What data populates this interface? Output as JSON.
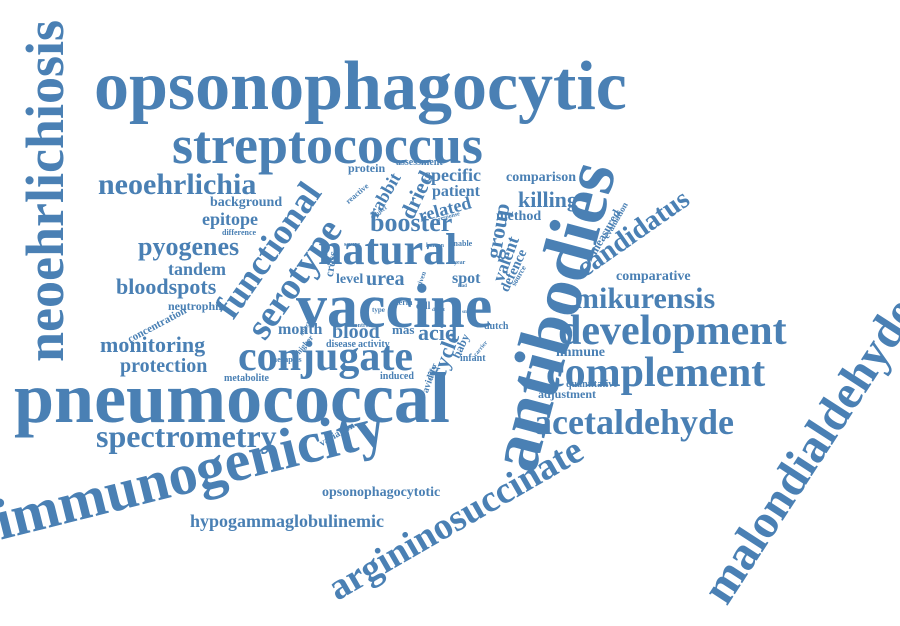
{
  "colors": {
    "word": "#4a80b4",
    "background": "#ffffff"
  },
  "words": [
    {
      "id": "opsonophagocytic",
      "text": "opsonophagocytic"
    },
    {
      "id": "neoehrlichiosis",
      "text": "neoehrlichiosis"
    },
    {
      "id": "streptococcus",
      "text": "streptococcus"
    },
    {
      "id": "neoehrlichia",
      "text": "neoehrlichia"
    },
    {
      "id": "functional",
      "text": "functional"
    },
    {
      "id": "serotype",
      "text": "serotype"
    },
    {
      "id": "natural",
      "text": "natural"
    },
    {
      "id": "booster",
      "text": "booster"
    },
    {
      "id": "vaccine",
      "text": "vaccine"
    },
    {
      "id": "antibodies",
      "text": "antibodies"
    },
    {
      "id": "candidatus",
      "text": "candidatus"
    },
    {
      "id": "mikurensis",
      "text": "mikurensis"
    },
    {
      "id": "development",
      "text": "development"
    },
    {
      "id": "complement",
      "text": "complement"
    },
    {
      "id": "pneumococcal",
      "text": "pneumococcal"
    },
    {
      "id": "conjugate",
      "text": "conjugate"
    },
    {
      "id": "spectrometry",
      "text": "spectrometry"
    },
    {
      "id": "immunogenicity",
      "text": "immunogenicity"
    },
    {
      "id": "acetaldehyde",
      "text": "acetaldehyde"
    },
    {
      "id": "argininosuccinate",
      "text": "argininosuccinate"
    },
    {
      "id": "malondialdehyde",
      "text": "malondialdehyde"
    },
    {
      "id": "hypogammaglobulinemic",
      "text": "hypogammaglobulinemic"
    },
    {
      "id": "opsonophagocytotic",
      "text": "opsonophagocytotic"
    },
    {
      "id": "monitoring",
      "text": "monitoring"
    },
    {
      "id": "protection",
      "text": "protection"
    },
    {
      "id": "bloodspots",
      "text": "bloodspots"
    },
    {
      "id": "pyogenes",
      "text": "pyogenes"
    },
    {
      "id": "tandem",
      "text": "tandem"
    },
    {
      "id": "epitope",
      "text": "epitope"
    },
    {
      "id": "background",
      "text": "background"
    },
    {
      "id": "neutrophil",
      "text": "neutrophil"
    },
    {
      "id": "concentration",
      "text": "concentration"
    },
    {
      "id": "metabolite",
      "text": "metabolite"
    },
    {
      "id": "difference",
      "text": "difference"
    },
    {
      "id": "month",
      "text": "month"
    },
    {
      "id": "blood",
      "text": "blood"
    },
    {
      "id": "acid",
      "text": "acid"
    },
    {
      "id": "cycle",
      "text": "cycle"
    },
    {
      "id": "urea",
      "text": "urea"
    },
    {
      "id": "level",
      "text": "level"
    },
    {
      "id": "spot",
      "text": "spot"
    },
    {
      "id": "group",
      "text": "group"
    },
    {
      "id": "valent",
      "text": "valent"
    },
    {
      "id": "killing",
      "text": "killing"
    },
    {
      "id": "method",
      "text": "method"
    },
    {
      "id": "comparison",
      "text": "comparison"
    },
    {
      "id": "specific",
      "text": "specific"
    },
    {
      "id": "patient",
      "text": "patient"
    },
    {
      "id": "related",
      "text": "related"
    },
    {
      "id": "dried",
      "text": "dried"
    },
    {
      "id": "rabbit",
      "text": "rabbit"
    },
    {
      "id": "protein",
      "text": "protein"
    },
    {
      "id": "assessment",
      "text": "assessment"
    },
    {
      "id": "comparative",
      "text": "comparative"
    },
    {
      "id": "quantitative",
      "text": "quantitative"
    },
    {
      "id": "adjustment",
      "text": "adjustment"
    },
    {
      "id": "immune",
      "text": "immune"
    },
    {
      "id": "defence",
      "text": "defence"
    },
    {
      "id": "measured",
      "text": "measured"
    },
    {
      "id": "evaluation",
      "text": "evaluation"
    },
    {
      "id": "dutch",
      "text": "dutch"
    },
    {
      "id": "infant",
      "text": "infant"
    },
    {
      "id": "baby",
      "text": "baby"
    },
    {
      "id": "induced",
      "text": "induced"
    },
    {
      "id": "avidity",
      "text": "avidity"
    },
    {
      "id": "mas",
      "text": "mas"
    },
    {
      "id": "cell",
      "text": "cell"
    },
    {
      "id": "disease",
      "text": "disease"
    },
    {
      "id": "activity",
      "text": "activity"
    },
    {
      "id": "therapies",
      "text": "therapies"
    },
    {
      "id": "higher",
      "text": "higher"
    },
    {
      "id": "variation",
      "text": "variation"
    },
    {
      "id": "term",
      "text": "term"
    },
    {
      "id": "control",
      "text": "control"
    },
    {
      "id": "cross",
      "text": "cross"
    },
    {
      "id": "reactive",
      "text": "reactive"
    },
    {
      "id": "enable",
      "text": "enable"
    },
    {
      "id": "human",
      "text": "human"
    },
    {
      "id": "severe",
      "text": "severe"
    },
    {
      "id": "subject",
      "text": "subject"
    },
    {
      "id": "response",
      "text": "response"
    },
    {
      "id": "source",
      "text": "source"
    },
    {
      "id": "detect",
      "text": "detect"
    },
    {
      "id": "carrier",
      "text": "carrier"
    },
    {
      "id": "direct",
      "text": "direct"
    },
    {
      "id": "differ",
      "text": "differ"
    },
    {
      "id": "given",
      "text": "given"
    },
    {
      "id": "type",
      "text": "type"
    },
    {
      "id": "year",
      "text": "year"
    },
    {
      "id": "lead",
      "text": "lead"
    },
    {
      "id": "small",
      "text": "small"
    }
  ]
}
